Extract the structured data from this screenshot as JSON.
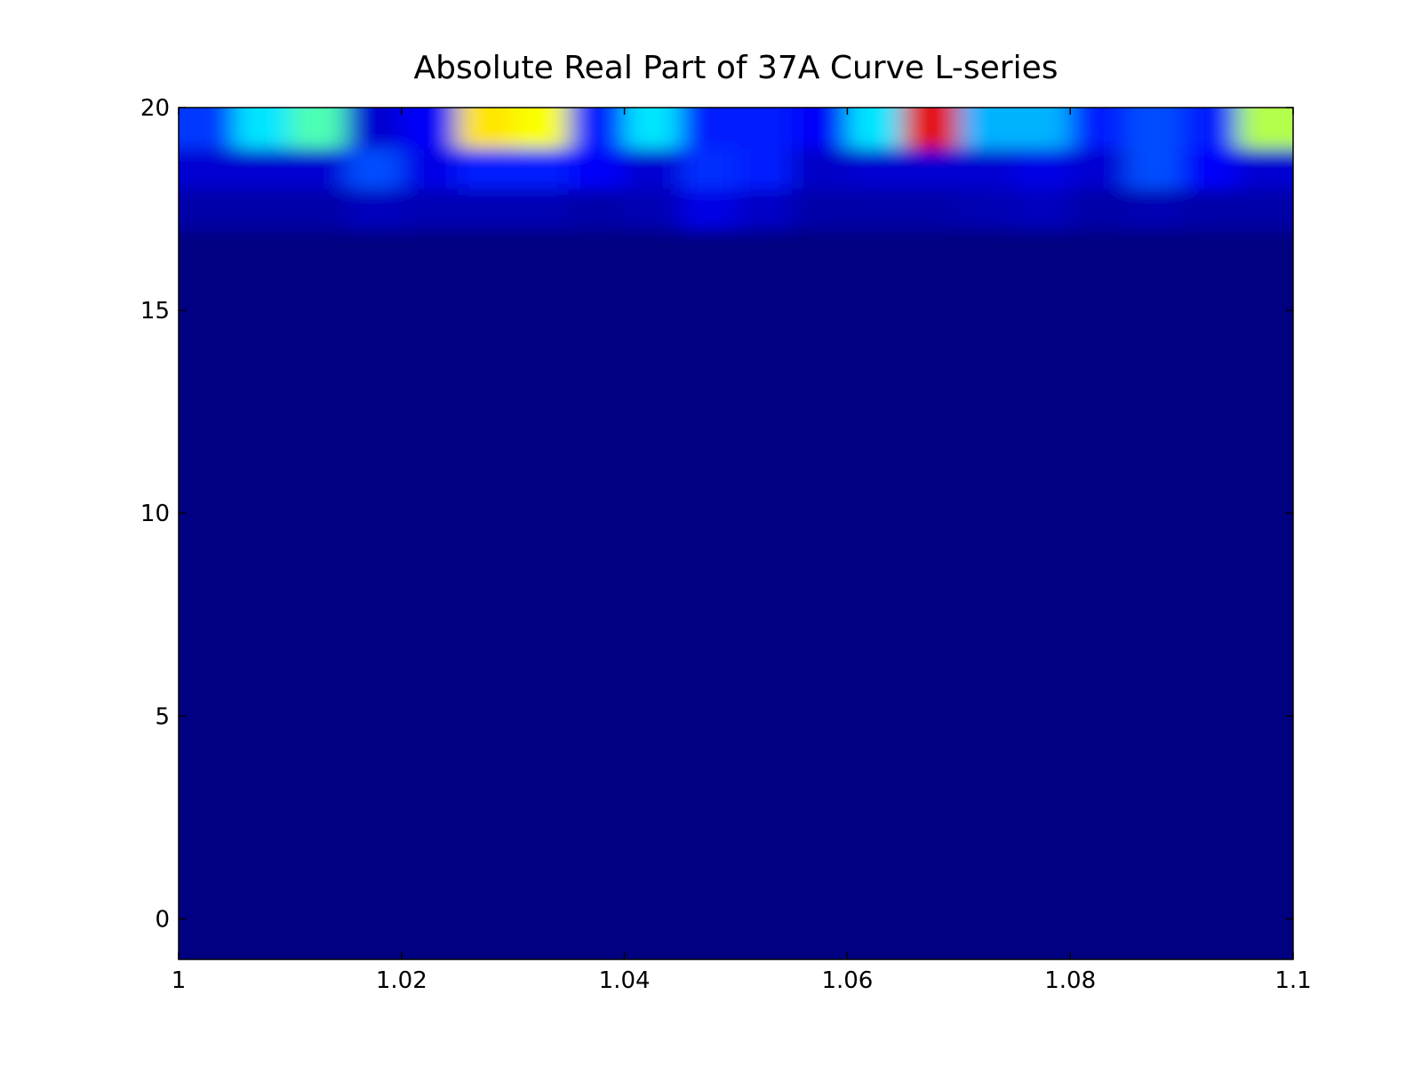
{
  "chart_data": {
    "type": "heatmap",
    "title": "Absolute Real Part of 37A Curve L-series",
    "colormap": "jet",
    "zlim": [
      0,
      1
    ],
    "xedges": [
      1,
      1.005,
      1.01,
      1.015,
      1.02,
      1.025,
      1.03,
      1.035,
      1.04,
      1.045,
      1.05,
      1.055,
      1.06,
      1.065,
      1.07,
      1.075,
      1.08,
      1.085,
      1.09,
      1.095,
      1.1
    ],
    "yedges": [
      -1,
      17,
      18,
      19,
      20
    ],
    "z": [
      [
        0,
        0,
        0,
        0,
        0,
        0,
        0,
        0,
        0,
        0,
        0,
        0,
        0,
        0,
        0,
        0,
        0,
        0,
        0,
        0
      ],
      [
        0.04,
        0.04,
        0.04,
        0.06,
        0.05,
        0.05,
        0.05,
        0.04,
        0.05,
        0.1,
        0.07,
        0.04,
        0.04,
        0.04,
        0.05,
        0.06,
        0.04,
        0.05,
        0.04,
        0.04
      ],
      [
        0.08,
        0.08,
        0.08,
        0.2,
        0.1,
        0.15,
        0.15,
        0.12,
        0.08,
        0.17,
        0.15,
        0.07,
        0.08,
        0.08,
        0.08,
        0.1,
        0.08,
        0.2,
        0.12,
        0.08
      ],
      [
        0.18,
        0.35,
        0.45,
        0.08,
        0.12,
        0.65,
        0.62,
        0.15,
        0.35,
        0.15,
        0.15,
        0.12,
        0.35,
        0.9,
        0.3,
        0.3,
        0.15,
        0.2,
        0.15,
        0.55
      ]
    ],
    "xlim": [
      1,
      1.1
    ],
    "ylim": [
      -1,
      20
    ],
    "xticks": [
      1,
      1.02,
      1.04,
      1.06,
      1.08,
      1.1
    ],
    "yticks": [
      0,
      5,
      10,
      15,
      20
    ]
  }
}
